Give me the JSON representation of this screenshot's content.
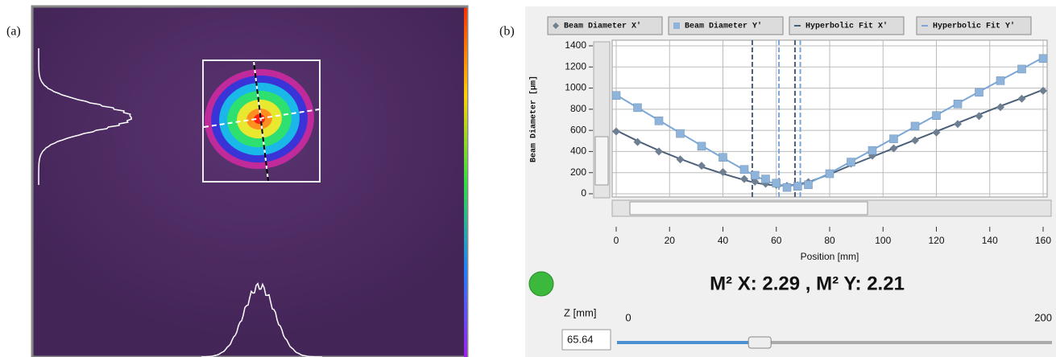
{
  "panels": {
    "a": "(a)",
    "b": "(b)"
  },
  "chart_data": {
    "type": "line",
    "xlabel": "Position [mm]",
    "ylabel": "Beam Diameter [μm]",
    "x": [
      0,
      8,
      16,
      24,
      32,
      40,
      48,
      52,
      56,
      60,
      64,
      68,
      72,
      80,
      88,
      96,
      104,
      112,
      120,
      128,
      136,
      144,
      152,
      160
    ],
    "series": [
      {
        "name": "Beam Diameter X'",
        "style": "diamond",
        "color": "#6f7f92",
        "values": [
          590,
          490,
          400,
          325,
          265,
          205,
          140,
          115,
          95,
          85,
          75,
          80,
          110,
          195,
          285,
          360,
          430,
          505,
          580,
          660,
          735,
          820,
          900,
          975
        ]
      },
      {
        "name": "Beam Diameter Y'",
        "style": "square",
        "color": "#8fb4dc",
        "values": [
          930,
          815,
          690,
          570,
          450,
          345,
          230,
          175,
          140,
          100,
          60,
          70,
          85,
          190,
          300,
          410,
          520,
          640,
          740,
          850,
          960,
          1070,
          1180,
          1280
        ]
      },
      {
        "name": "Hyperbolic Fit X'",
        "style": "line",
        "color": "#4a5f78",
        "values": [
          600,
          500,
          410,
          330,
          255,
          190,
          130,
          105,
          88,
          78,
          78,
          88,
          110,
          185,
          270,
          350,
          430,
          510,
          590,
          670,
          750,
          830,
          905,
          985
        ]
      },
      {
        "name": "Hyperbolic Fit Y'",
        "style": "line",
        "color": "#7aa7d6",
        "values": [
          935,
          815,
          695,
          575,
          455,
          340,
          225,
          170,
          125,
          90,
          75,
          80,
          100,
          195,
          305,
          415,
          525,
          635,
          745,
          855,
          965,
          1075,
          1180,
          1290
        ]
      }
    ],
    "vlines": [
      {
        "value": 51,
        "color": "#4a5f78"
      },
      {
        "value": 61,
        "color": "#7aa7d6"
      },
      {
        "value": 67,
        "color": "#4a5f78"
      },
      {
        "value": 69,
        "color": "#7aa7d6"
      }
    ],
    "xlim": [
      0,
      160
    ],
    "xticks": [
      0,
      20,
      40,
      60,
      80,
      100,
      120,
      140,
      160
    ],
    "ylim": [
      0,
      1400
    ],
    "yticks": [
      0,
      200,
      400,
      600,
      800,
      1000,
      1200,
      1400
    ],
    "grid": true
  },
  "result": "M² X: 2.29 , M² Y: 2.21",
  "slider": {
    "label": "Z [mm]",
    "min": 0,
    "max": 200,
    "value": 65.64
  }
}
